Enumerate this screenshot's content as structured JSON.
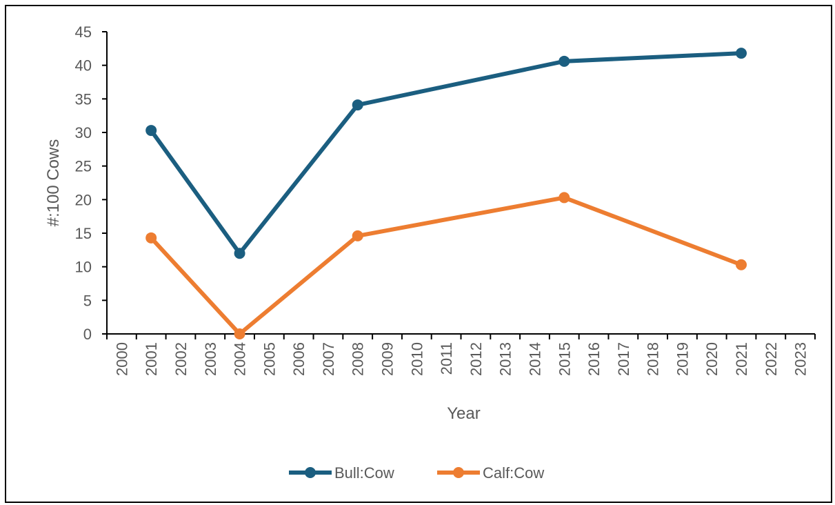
{
  "chart_data": {
    "type": "line",
    "title": "",
    "xlabel": "Year",
    "ylabel": "#:100 Cows",
    "x_ticks": [
      "2000",
      "2001",
      "2002",
      "2003",
      "2004",
      "2005",
      "2006",
      "2007",
      "2008",
      "2009",
      "2010",
      "2011",
      "2012",
      "2013",
      "2014",
      "2015",
      "2016",
      "2017",
      "2018",
      "2019",
      "2020",
      "2021",
      "2022",
      "2023"
    ],
    "y_ticks": [
      0,
      5,
      10,
      15,
      20,
      25,
      30,
      35,
      40,
      45
    ],
    "ylim": [
      0,
      45
    ],
    "grid": false,
    "legend_position": "bottom",
    "series": [
      {
        "name": "Bull:Cow",
        "color": "#1b5e80",
        "points": [
          {
            "x": 2001,
            "y": 30.3
          },
          {
            "x": 2004,
            "y": 12.0
          },
          {
            "x": 2008,
            "y": 34.1
          },
          {
            "x": 2015,
            "y": 40.6
          },
          {
            "x": 2021,
            "y": 41.8
          }
        ]
      },
      {
        "name": "Calf:Cow",
        "color": "#ed7d31",
        "points": [
          {
            "x": 2001,
            "y": 14.3
          },
          {
            "x": 2004,
            "y": 0.0
          },
          {
            "x": 2008,
            "y": 14.6
          },
          {
            "x": 2015,
            "y": 20.3
          },
          {
            "x": 2021,
            "y": 10.3
          }
        ]
      }
    ]
  }
}
